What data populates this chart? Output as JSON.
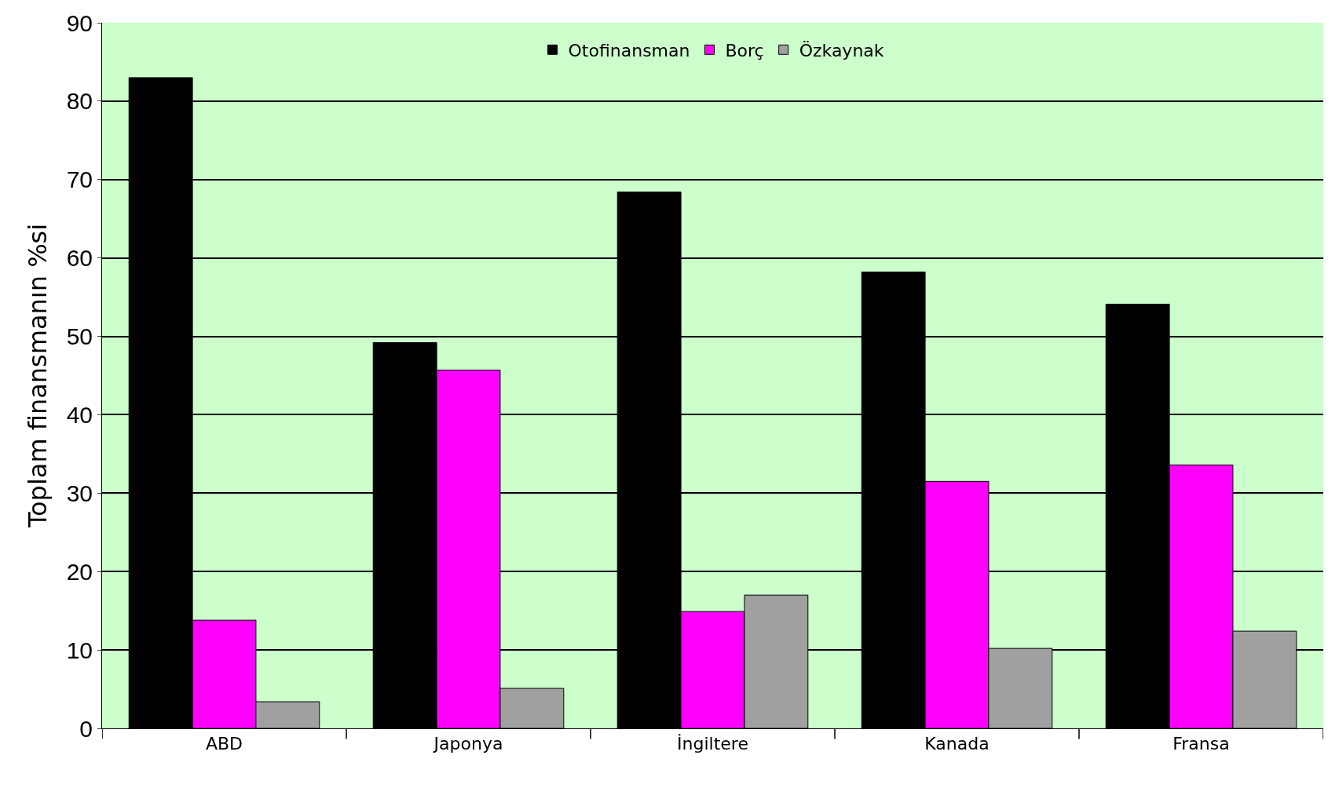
{
  "chart_data": {
    "type": "bar",
    "ylabel": "Toplam finansmanın %si",
    "categories": [
      "ABD",
      "Japonya",
      "İngiltere",
      "Kanada",
      "Fransa"
    ],
    "series": [
      {
        "name": "Otofinansman",
        "color": "#000000",
        "values": [
          83,
          49.2,
          68.4,
          58.2,
          54.1
        ]
      },
      {
        "name": "Borç",
        "color": "#ff00ff",
        "values": [
          13.8,
          45.7,
          14.9,
          31.5,
          33.6
        ]
      },
      {
        "name": "Özkaynak",
        "color": "#a0a0a0",
        "values": [
          3.4,
          5.1,
          17,
          10.2,
          12.4
        ]
      }
    ],
    "ylim": [
      0,
      90
    ],
    "yticks": [
      0,
      10,
      20,
      30,
      40,
      50,
      60,
      70,
      80,
      90
    ],
    "grid": "y",
    "legend": "top"
  }
}
